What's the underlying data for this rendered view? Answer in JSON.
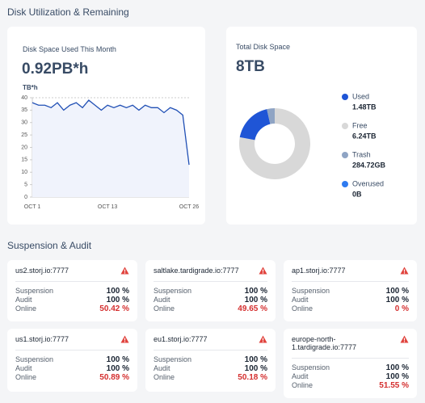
{
  "header": {
    "title": "Disk Utilization & Remaining"
  },
  "chart_data": [
    {
      "type": "line",
      "title": "Disk Space Used This Month",
      "subtitle": "0.92PB*h",
      "y_label": "TB*h",
      "categories": [
        "OCT 1",
        null,
        null,
        null,
        null,
        null,
        null,
        null,
        null,
        null,
        null,
        null,
        "OCT 13",
        null,
        null,
        null,
        null,
        null,
        null,
        null,
        null,
        null,
        null,
        null,
        null,
        "OCT 26"
      ],
      "values": [
        38,
        37,
        37,
        36,
        38,
        35,
        37,
        38,
        36,
        39,
        37,
        35,
        37,
        36,
        37,
        36,
        37,
        35,
        37,
        36,
        36,
        34,
        36,
        35,
        33,
        13
      ],
      "color": "#2150b5",
      "fill": "#f0f3fc",
      "ylim": [
        0,
        40
      ],
      "yticks": [
        0,
        5,
        10,
        15,
        20,
        25,
        30,
        35,
        40
      ],
      "grid": false
    },
    {
      "type": "pie",
      "title": "Total Disk Space",
      "subtitle": "8TB",
      "categories": [
        "Used",
        "Free",
        "Trash",
        "Overused"
      ],
      "values": [
        1.48,
        6.24,
        0.28472,
        0
      ],
      "value_labels": [
        "1.48TB",
        "6.24TB",
        "284.72GB",
        "0B"
      ],
      "colors": [
        "#1f55d6",
        "#d8d8d8",
        "#8fa4c4",
        "#2e7bf0"
      ]
    }
  ],
  "suspension": {
    "title": "Suspension & Audit",
    "labels": [
      "Suspension",
      "Audit",
      "Online"
    ],
    "nodes": [
      {
        "name": "us2.storj.io:7777",
        "values": [
          "100 %",
          "100 %",
          "50.42 %"
        ]
      },
      {
        "name": "saltlake.tardigrade.io:7777",
        "values": [
          "100 %",
          "100 %",
          "49.65 %"
        ]
      },
      {
        "name": "ap1.storj.io:7777",
        "values": [
          "100 %",
          "100 %",
          "0 %"
        ]
      },
      {
        "name": "us1.storj.io:7777",
        "values": [
          "100 %",
          "100 %",
          "50.89 %"
        ]
      },
      {
        "name": "eu1.storj.io:7777",
        "values": [
          "100 %",
          "100 %",
          "50.18 %"
        ]
      },
      {
        "name": "europe-north-1.tardigrade.io:7777",
        "values": [
          "100 %",
          "100 %",
          "51.55 %"
        ]
      }
    ]
  }
}
